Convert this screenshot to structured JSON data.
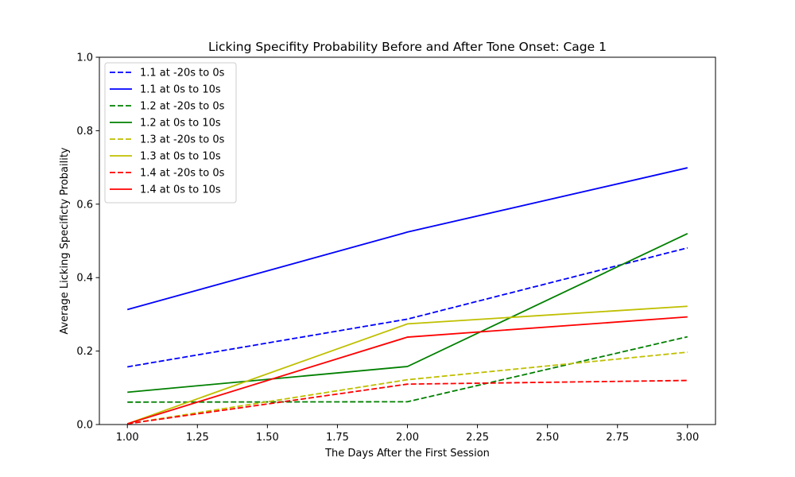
{
  "chart_data": {
    "type": "line",
    "title": "Licking Specifity Probability Before and After Tone Onset: Cage 1",
    "xlabel": "The Days After the First Session",
    "ylabel": "Average Licking Specificty Probaility",
    "xlim": [
      0.9,
      3.1
    ],
    "ylim": [
      0,
      1.0
    ],
    "xticks": [
      "1.00",
      "1.25",
      "1.50",
      "1.75",
      "2.00",
      "2.25",
      "2.50",
      "2.75",
      "3.00"
    ],
    "yticks": [
      "0.0",
      "0.2",
      "0.4",
      "0.6",
      "0.8",
      "1.0"
    ],
    "legend": "top-left",
    "grid": false,
    "x": [
      1,
      2,
      3
    ],
    "series": [
      {
        "name": "1.1 at -20s to 0s",
        "color": "#0000ff",
        "dashed": true,
        "values": [
          0.157,
          0.287,
          0.481
        ]
      },
      {
        "name": "1.1 at 0s to 10s",
        "color": "#0000ff",
        "dashed": false,
        "values": [
          0.313,
          0.524,
          0.699
        ]
      },
      {
        "name": "1.2 at -20s to 0s",
        "color": "#008000",
        "dashed": true,
        "values": [
          0.061,
          0.062,
          0.239
        ]
      },
      {
        "name": "1.2 at 0s to 10s",
        "color": "#008000",
        "dashed": false,
        "values": [
          0.088,
          0.158,
          0.52
        ]
      },
      {
        "name": "1.3 at -20s to 0s",
        "color": "#bfbf00",
        "dashed": true,
        "values": [
          0.002,
          0.122,
          0.197
        ]
      },
      {
        "name": "1.3 at 0s to 10s",
        "color": "#bfbf00",
        "dashed": false,
        "values": [
          0.002,
          0.274,
          0.322
        ]
      },
      {
        "name": "1.4 at -20s to 0s",
        "color": "#ff0000",
        "dashed": true,
        "values": [
          0.002,
          0.11,
          0.12
        ]
      },
      {
        "name": "1.4 at 0s to 10s",
        "color": "#ff0000",
        "dashed": false,
        "values": [
          0.002,
          0.238,
          0.293
        ]
      }
    ]
  }
}
